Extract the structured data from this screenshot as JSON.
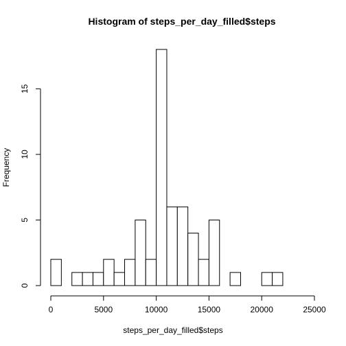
{
  "chart_data": {
    "type": "bar",
    "title": "Histogram of steps_per_day_filled$steps",
    "xlabel": "steps_per_day_filled$steps",
    "ylabel": "Frequency",
    "bin_width": 1000,
    "bins": [
      {
        "from": 0,
        "to": 1000,
        "count": 2
      },
      {
        "from": 1000,
        "to": 2000,
        "count": 0
      },
      {
        "from": 2000,
        "to": 3000,
        "count": 1
      },
      {
        "from": 3000,
        "to": 4000,
        "count": 1
      },
      {
        "from": 4000,
        "to": 5000,
        "count": 1
      },
      {
        "from": 5000,
        "to": 6000,
        "count": 2
      },
      {
        "from": 6000,
        "to": 7000,
        "count": 1
      },
      {
        "from": 7000,
        "to": 8000,
        "count": 2
      },
      {
        "from": 8000,
        "to": 9000,
        "count": 5
      },
      {
        "from": 9000,
        "to": 10000,
        "count": 2
      },
      {
        "from": 10000,
        "to": 11000,
        "count": 18
      },
      {
        "from": 11000,
        "to": 12000,
        "count": 6
      },
      {
        "from": 12000,
        "to": 13000,
        "count": 6
      },
      {
        "from": 13000,
        "to": 14000,
        "count": 4
      },
      {
        "from": 14000,
        "to": 15000,
        "count": 2
      },
      {
        "from": 15000,
        "to": 16000,
        "count": 5
      },
      {
        "from": 16000,
        "to": 17000,
        "count": 0
      },
      {
        "from": 17000,
        "to": 18000,
        "count": 1
      },
      {
        "from": 18000,
        "to": 19000,
        "count": 0
      },
      {
        "from": 19000,
        "to": 20000,
        "count": 0
      },
      {
        "from": 20000,
        "to": 21000,
        "count": 1
      },
      {
        "from": 21000,
        "to": 22000,
        "count": 1
      },
      {
        "from": 22000,
        "to": 23000,
        "count": 0
      },
      {
        "from": 23000,
        "to": 24000,
        "count": 0
      },
      {
        "from": 24000,
        "to": 25000,
        "count": 0
      }
    ],
    "xlim": [
      0,
      25000
    ],
    "ylim": [
      0,
      18
    ],
    "x_ticks": [
      0,
      5000,
      10000,
      15000,
      20000,
      25000
    ],
    "y_ticks": [
      0,
      5,
      10,
      15
    ],
    "grid": false,
    "bar_fill": "#ffffff",
    "bar_stroke": "#000000"
  }
}
